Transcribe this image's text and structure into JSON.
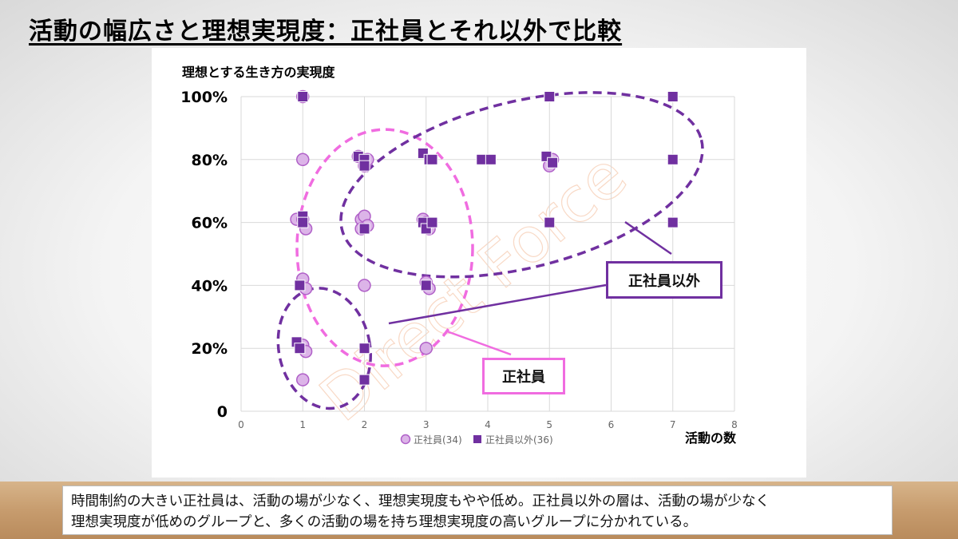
{
  "slide": {
    "title": "活動の幅広さと理想実現度：正社員とそれ以外で比較",
    "caption_lines": [
      "時間制約の大きい正社員は、活動の場が少なく、理想実現度もやや低め。正社員以外の層は、活動の場が少なく",
      "理想実現度が低めのグループと、多くの活動の場を持ち理想実現度の高いグループに分かれている。"
    ],
    "watermark": "Direct Force"
  },
  "callouts": {
    "other_label": "正社員以外",
    "regular_label": "正社員"
  },
  "colors": {
    "regular": "#f06ce0",
    "regular_fill": "#dcb4e8",
    "other": "#7030a0",
    "other_fill": "#7030a0",
    "grid": "#d9d9d9"
  },
  "chart_data": {
    "type": "scatter",
    "ylabel": "理想とする生き方の実現度",
    "xlabel": "活動の数",
    "xlim": [
      0,
      8
    ],
    "ylim": [
      0,
      100
    ],
    "x_ticks": [
      "0",
      "1",
      "2",
      "3",
      "4",
      "5",
      "6",
      "7",
      "8"
    ],
    "y_ticks": [
      "0",
      "20%",
      "40%",
      "60%",
      "80%",
      "100%"
    ],
    "grid": true,
    "legend_position": "bottom",
    "series": [
      {
        "name": "正社員(34)",
        "marker": "circle",
        "points": [
          [
            1,
            100
          ],
          [
            1,
            80
          ],
          [
            0.9,
            61
          ],
          [
            1.0,
            61
          ],
          [
            1.05,
            58
          ],
          [
            1,
            42
          ],
          [
            1.05,
            39
          ],
          [
            1,
            21
          ],
          [
            1.05,
            19
          ],
          [
            1,
            10
          ],
          [
            1.9,
            81
          ],
          [
            2,
            78
          ],
          [
            2.05,
            80
          ],
          [
            1.95,
            61
          ],
          [
            2.0,
            62
          ],
          [
            2.05,
            59
          ],
          [
            1.95,
            58
          ],
          [
            2,
            40
          ],
          [
            2.95,
            61
          ],
          [
            3.0,
            60
          ],
          [
            3.05,
            58
          ],
          [
            3,
            41
          ],
          [
            3.05,
            39
          ],
          [
            3,
            20
          ],
          [
            5.05,
            80
          ],
          [
            5.0,
            78
          ]
        ]
      },
      {
        "name": "正社員以外(36)",
        "marker": "square",
        "points": [
          [
            1,
            100
          ],
          [
            1,
            62
          ],
          [
            1,
            60
          ],
          [
            0.95,
            40
          ],
          [
            0.9,
            22
          ],
          [
            0.95,
            20
          ],
          [
            1.9,
            81
          ],
          [
            2,
            80
          ],
          [
            2,
            78
          ],
          [
            2,
            58
          ],
          [
            2,
            20
          ],
          [
            2,
            10
          ],
          [
            2.95,
            82
          ],
          [
            3.05,
            80
          ],
          [
            3.1,
            80
          ],
          [
            2.95,
            60
          ],
          [
            3.0,
            58
          ],
          [
            3.1,
            60
          ],
          [
            3,
            40
          ],
          [
            3.9,
            80
          ],
          [
            4.05,
            80
          ],
          [
            4.95,
            81
          ],
          [
            5.05,
            79
          ],
          [
            5,
            60
          ],
          [
            5,
            100
          ],
          [
            7,
            100
          ],
          [
            7,
            80
          ],
          [
            7,
            60
          ]
        ]
      }
    ]
  }
}
